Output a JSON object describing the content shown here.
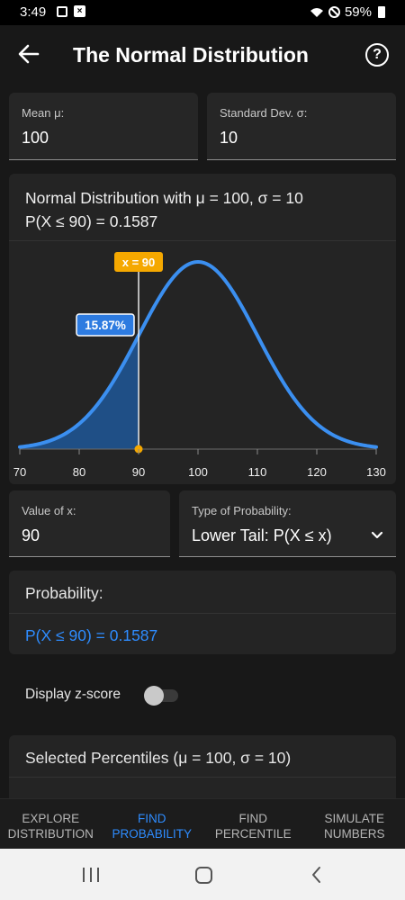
{
  "status_bar": {
    "time": "3:49",
    "battery": "59%"
  },
  "app_bar": {
    "title": "The Normal Distribution",
    "help_label": "?"
  },
  "mean_field": {
    "label": "Mean μ:",
    "value": "100"
  },
  "sd_field": {
    "label": "Standard Dev. σ:",
    "value": "10"
  },
  "chart_card": {
    "title_line1": "Normal Distribution with μ = 100, σ = 10",
    "title_line2": "P(X ≤ 90) = 0.1587"
  },
  "chart_data": {
    "type": "area",
    "distribution": "normal",
    "mean": 100,
    "sd": 10,
    "xlim": [
      70,
      130
    ],
    "x_ticks": [
      70,
      80,
      90,
      100,
      110,
      120,
      130
    ],
    "shaded_region": {
      "from": 70,
      "to": 90
    },
    "marker_x": 90,
    "marker_label": "x = 90",
    "area_label": "15.87%",
    "probability": 0.1587,
    "curve_color": "#3b8ff0",
    "shade_color": "#1f4f86",
    "marker_color": "#f5a800"
  },
  "x_field": {
    "label": "Value of x:",
    "value": "90"
  },
  "prob_type": {
    "label": "Type of Probability:",
    "value": "Lower Tail: P(X ≤ x)"
  },
  "probability_card": {
    "header": "Probability:",
    "result": "P(X ≤ 90) = 0.1587"
  },
  "zscore": {
    "label": "Display z-score",
    "enabled": false
  },
  "percentiles_card": {
    "header": "Selected Percentiles (μ = 100, σ = 10)"
  },
  "tabs": [
    {
      "line1": "Explore",
      "line2": "Distribution",
      "active": false
    },
    {
      "line1": "Find",
      "line2": "Probability",
      "active": true
    },
    {
      "line1": "Find",
      "line2": "Percentile",
      "active": false
    },
    {
      "line1": "Simulate",
      "line2": "Numbers",
      "active": false
    }
  ],
  "colors": {
    "accent": "#2e8cff",
    "background": "#181818",
    "card": "#242424"
  }
}
